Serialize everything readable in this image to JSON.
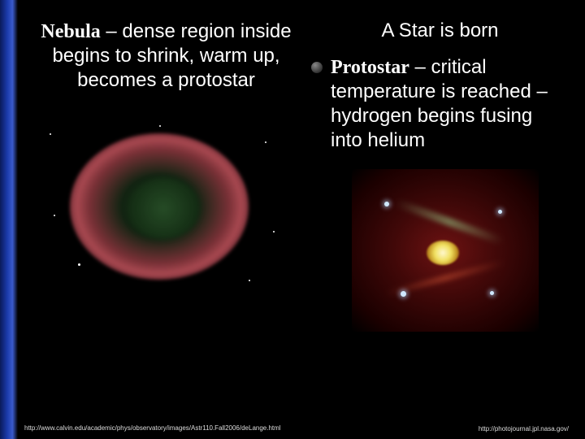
{
  "colors": {
    "background": "#000000",
    "text": "#ffffff",
    "accent_gradient": [
      "#0a1a5a",
      "#1a3aaa",
      "#3a5acc",
      "#000000"
    ],
    "nebula_ring": "#c8505a",
    "nebula_inner": "#285028",
    "proto_bg": "#501414",
    "proto_core": "#f0e060",
    "credit_text": "#dddddd"
  },
  "typography": {
    "body_font": "Arial",
    "serif_font": "Times New Roman",
    "body_size_pt": 24,
    "credit_size_pt": 8
  },
  "left": {
    "lead": "Nebula",
    "rest": " – dense region inside begins to shrink, warm up, becomes a protostar",
    "image_alt": "ring-nebula",
    "credit": "http://www.calvin.edu/academic/phys/observatory/images/Astr110.Fall2006/deLange.html"
  },
  "right": {
    "title": "A Star is born",
    "lead": "Protostar",
    "rest": " – critical temperature is reached – hydrogen begins fusing into helium",
    "image_alt": "protostar",
    "credit": "http://photojournal.jpl.nasa.gov/"
  }
}
